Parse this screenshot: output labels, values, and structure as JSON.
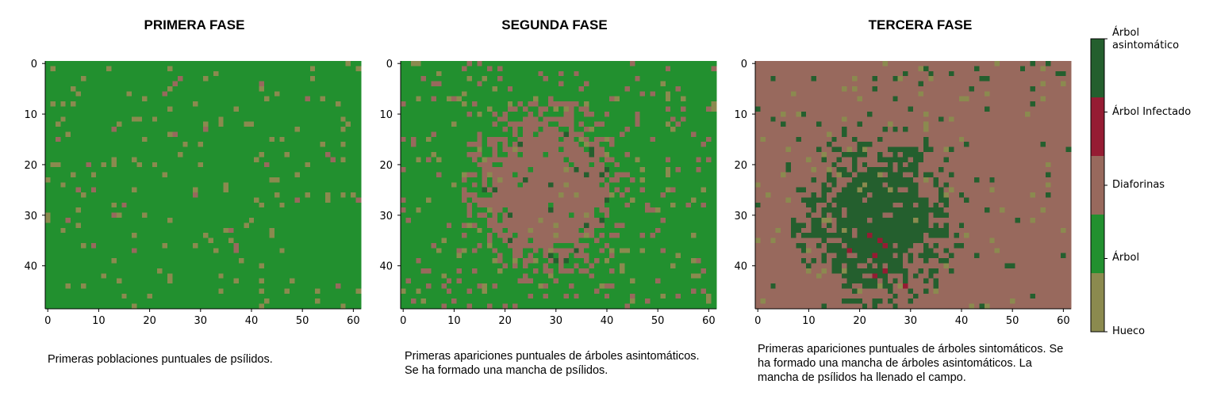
{
  "colors": {
    "hueco": "#8b8a4f",
    "arbol": "#22902f",
    "diaforinas": "#98695d",
    "infectado": "#951c33",
    "asintomatico": "#245f2e"
  },
  "legend": {
    "labels": [
      "Árbol\nasintomático",
      "Árbol Infectado",
      "Diaforinas",
      "Árbol",
      "Hueco"
    ]
  },
  "panels": [
    {
      "title": "PRIMERA FASE",
      "caption": "Primeras poblaciones puntuales de psílidos."
    },
    {
      "title": "SEGUNDA FASE",
      "caption": "Primeras apariciones puntuales de árboles asintomáticos. Se ha formado una mancha de psílidos."
    },
    {
      "title": "TERCERA FASE",
      "caption": "Primeras apariciones puntuales de árboles sintomáticos. Se ha formado una mancha de árboles asintomáticos. La mancha de psílidos ha llenado el campo."
    }
  ],
  "chart_data": [
    {
      "type": "heatmap",
      "title": "PRIMERA FASE",
      "grid_size": [
        49,
        62
      ],
      "x_ticks": [
        0,
        10,
        20,
        30,
        40,
        50,
        60
      ],
      "y_ticks": [
        0,
        10,
        20,
        30,
        40
      ],
      "categories": [
        "Hueco",
        "Árbol",
        "Diaforinas",
        "Árbol Infectado",
        "Árbol asintomático"
      ],
      "description_values": {
        "dominant": "Árbol",
        "scattered": "Hueco"
      }
    },
    {
      "type": "heatmap",
      "title": "SEGUNDA FASE",
      "grid_size": [
        49,
        62
      ],
      "x_ticks": [
        0,
        10,
        20,
        30,
        40,
        50,
        60
      ],
      "y_ticks": [
        0,
        10,
        20,
        30,
        40
      ],
      "categories": [
        "Hueco",
        "Árbol",
        "Diaforinas",
        "Árbol Infectado",
        "Árbol asintomático"
      ],
      "patch": {
        "category": "Diaforinas",
        "center": [
          25,
          28
        ],
        "radius": [
          13,
          26
        ]
      }
    },
    {
      "type": "heatmap",
      "title": "TERCERA FASE",
      "grid_size": [
        49,
        62
      ],
      "x_ticks": [
        0,
        10,
        20,
        30,
        40,
        50,
        60
      ],
      "y_ticks": [
        0,
        10,
        20,
        30,
        40
      ],
      "categories": [
        "Hueco",
        "Árbol",
        "Diaforinas",
        "Árbol Infectado",
        "Árbol asintomático"
      ],
      "patch": {
        "category": "Árbol asintomático",
        "center": [
          24,
          33
        ],
        "radius": [
          13,
          18
        ]
      },
      "infected_cells": [
        [
          22,
          34
        ],
        [
          24,
          35
        ],
        [
          25,
          36
        ],
        [
          18,
          37
        ],
        [
          23,
          38
        ],
        [
          25,
          41
        ],
        [
          23,
          42
        ],
        [
          29,
          44
        ]
      ]
    }
  ]
}
